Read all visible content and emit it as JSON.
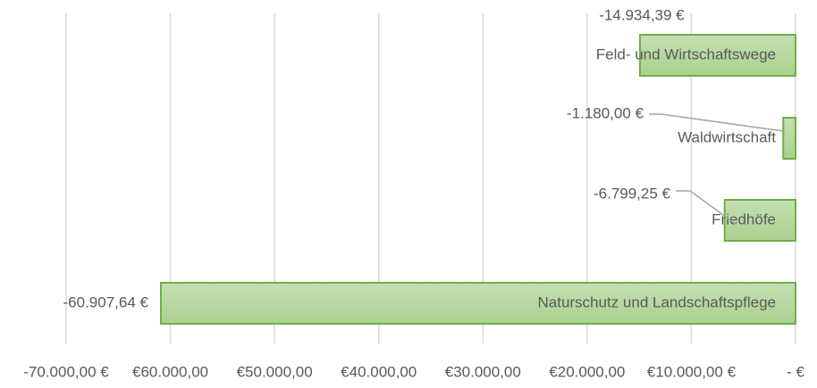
{
  "chart_data": {
    "type": "bar",
    "orientation": "horizontal",
    "categories": [
      "Feld- und Wirtschaftswege",
      "Waldwirtschaft",
      "Friedhöfe",
      "Naturschutz und Landschaftspflege"
    ],
    "values": [
      -14934.39,
      -1180.0,
      -6799.25,
      -60907.64
    ],
    "value_labels": [
      "-14.934,39 €",
      "-1.180,00 €",
      "-6.799,25 €",
      "-60.907,64 €"
    ],
    "color": "#a9d18e",
    "edgecolor": "#70ad47",
    "xlim": [
      -70000,
      0
    ],
    "xticks": [
      {
        "value": -70000,
        "label": "-70.000,00 €"
      },
      {
        "value": -60000,
        "label": "€60.000,00"
      },
      {
        "value": -50000,
        "label": "€50.000,00"
      },
      {
        "value": -40000,
        "label": "€40.000,00"
      },
      {
        "value": -30000,
        "label": "€30.000,00"
      },
      {
        "value": -20000,
        "label": "€20.000,00"
      },
      {
        "value": -10000,
        "label": "€10.000,00 €"
      },
      {
        "value": 0,
        "label": "- €"
      }
    ],
    "grid": true
  }
}
